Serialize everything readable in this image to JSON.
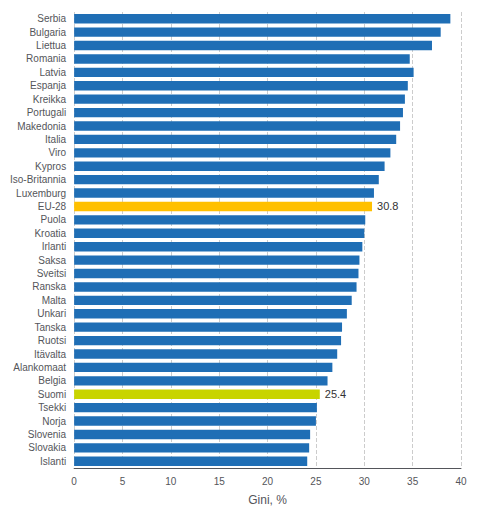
{
  "chart_data": {
    "type": "bar",
    "orientation": "horizontal",
    "categories": [
      "Serbia",
      "Bulgaria",
      "Liettua",
      "Romania",
      "Latvia",
      "Espanja",
      "Kreikka",
      "Portugali",
      "Makedonia",
      "Italia",
      "Viro",
      "Kypros",
      "Iso-Britannia",
      "Luxemburg",
      "EU-28",
      "Puola",
      "Kroatia",
      "Irlanti",
      "Saksa",
      "Sveitsi",
      "Ranska",
      "Malta",
      "Unkari",
      "Tanska",
      "Ruotsi",
      "Itävalta",
      "Alankomaat",
      "Belgia",
      "Suomi",
      "Tsekki",
      "Norja",
      "Slovenia",
      "Slovakia",
      "Islanti"
    ],
    "values": [
      38.9,
      37.9,
      37.0,
      34.7,
      35.1,
      34.5,
      34.2,
      34.0,
      33.7,
      33.3,
      32.7,
      32.1,
      31.5,
      31.0,
      30.8,
      30.1,
      30.0,
      29.8,
      29.5,
      29.4,
      29.2,
      28.7,
      28.2,
      27.7,
      27.6,
      27.2,
      26.7,
      26.2,
      25.4,
      25.1,
      25.0,
      24.4,
      24.3,
      24.1
    ],
    "colors": [
      "#1F6EB5",
      "#1F6EB5",
      "#1F6EB5",
      "#1F6EB5",
      "#1F6EB5",
      "#1F6EB5",
      "#1F6EB5",
      "#1F6EB5",
      "#1F6EB5",
      "#1F6EB5",
      "#1F6EB5",
      "#1F6EB5",
      "#1F6EB5",
      "#1F6EB5",
      "#FFC000",
      "#1F6EB5",
      "#1F6EB5",
      "#1F6EB5",
      "#1F6EB5",
      "#1F6EB5",
      "#1F6EB5",
      "#1F6EB5",
      "#1F6EB5",
      "#1F6EB5",
      "#1F6EB5",
      "#1F6EB5",
      "#1F6EB5",
      "#1F6EB5",
      "#C8D400",
      "#1F6EB5",
      "#1F6EB5",
      "#1F6EB5",
      "#1F6EB5",
      "#1F6EB5"
    ],
    "xlabel": "Gini, %",
    "xlim": [
      0,
      40
    ],
    "xticks": [
      0,
      5,
      10,
      15,
      20,
      25,
      30,
      35,
      40
    ],
    "grid": true,
    "annotations": [
      {
        "category": "EU-28",
        "text": "30.8"
      },
      {
        "category": "Suomi",
        "text": "25.4"
      }
    ]
  }
}
